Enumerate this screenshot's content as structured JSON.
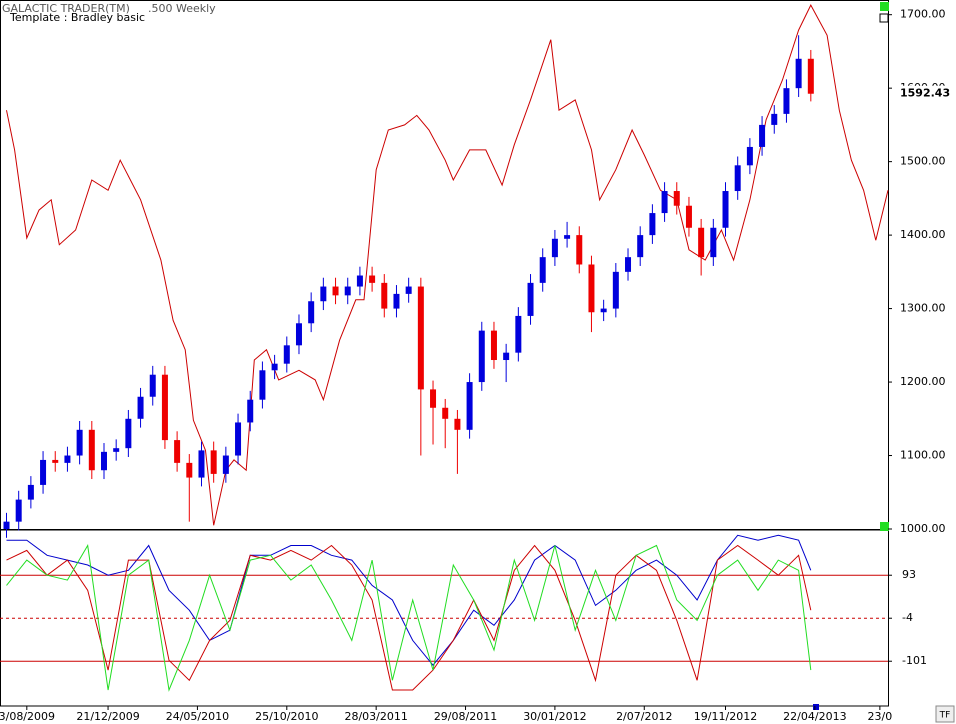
{
  "chart_data": [
    {
      "type": "candlestick",
      "title": "GALACTIC TRADER(TM)",
      "subtitle": ".500 Weekly",
      "template_label": "Template : Bradley basic",
      "up_color": "#0000dd",
      "down_color": "#ee0000",
      "x": [
        -5,
        -2,
        1,
        4,
        7,
        10,
        13,
        16,
        19,
        22,
        25,
        28,
        31,
        34,
        37,
        40,
        43,
        46,
        49,
        52,
        55,
        58,
        61,
        64,
        67,
        70,
        73,
        76,
        79,
        82,
        85,
        88,
        91,
        94,
        97,
        100,
        103,
        106,
        109,
        112,
        115,
        118,
        121,
        124,
        127,
        130,
        133,
        136,
        139,
        142,
        145,
        148,
        151,
        154,
        157,
        160,
        163,
        166,
        169,
        172,
        175,
        178,
        181,
        184,
        187,
        190,
        193
      ],
      "open": [
        1000,
        1010,
        1040,
        1060,
        1094,
        1090,
        1100,
        1135,
        1080,
        1105,
        1110,
        1150,
        1180,
        1210,
        1121,
        1090,
        1070,
        1107,
        1075,
        1100,
        1145,
        1176,
        1216,
        1225,
        1250,
        1280,
        1310,
        1330,
        1318,
        1330,
        1345,
        1335,
        1300,
        1320,
        1330,
        1190,
        1165,
        1150,
        1135,
        1200,
        1270,
        1230,
        1240,
        1290,
        1335,
        1370,
        1395,
        1400,
        1360,
        1295,
        1300,
        1350,
        1370,
        1400,
        1430,
        1460,
        1440,
        1410,
        1370,
        1410,
        1460,
        1495,
        1520,
        1550,
        1565,
        1600,
        1640
      ],
      "high": [
        1022,
        1052,
        1072,
        1106,
        1106,
        1112,
        1147,
        1147,
        1117,
        1122,
        1162,
        1192,
        1222,
        1222,
        1133,
        1102,
        1119,
        1119,
        1112,
        1157,
        1188,
        1228,
        1237,
        1262,
        1292,
        1322,
        1342,
        1342,
        1342,
        1357,
        1357,
        1347,
        1332,
        1342,
        1342,
        1202,
        1177,
        1162,
        1212,
        1282,
        1282,
        1252,
        1302,
        1347,
        1382,
        1407,
        1418,
        1412,
        1372,
        1312,
        1362,
        1382,
        1412,
        1442,
        1472,
        1472,
        1452,
        1422,
        1422,
        1472,
        1507,
        1532,
        1562,
        1577,
        1612,
        1672,
        1652
      ],
      "low": [
        988,
        998,
        1028,
        1048,
        1078,
        1078,
        1088,
        1068,
        1068,
        1093,
        1098,
        1138,
        1168,
        1109,
        1078,
        1010,
        1058,
        1063,
        1063,
        1088,
        1133,
        1164,
        1204,
        1213,
        1238,
        1268,
        1298,
        1306,
        1306,
        1318,
        1323,
        1288,
        1288,
        1308,
        1100,
        1115,
        1110,
        1075,
        1123,
        1188,
        1218,
        1200,
        1228,
        1278,
        1323,
        1358,
        1383,
        1348,
        1268,
        1283,
        1288,
        1338,
        1358,
        1388,
        1418,
        1428,
        1398,
        1345,
        1358,
        1398,
        1448,
        1483,
        1508,
        1538,
        1553,
        1588,
        1582
      ],
      "close": [
        1010,
        1040,
        1060,
        1094,
        1090,
        1100,
        1135,
        1080,
        1105,
        1110,
        1150,
        1180,
        1210,
        1121,
        1090,
        1070,
        1107,
        1075,
        1100,
        1145,
        1176,
        1216,
        1225,
        1250,
        1280,
        1310,
        1330,
        1318,
        1330,
        1345,
        1335,
        1300,
        1320,
        1330,
        1190,
        1165,
        1150,
        1135,
        1200,
        1270,
        1230,
        1240,
        1290,
        1335,
        1370,
        1395,
        1400,
        1360,
        1295,
        1300,
        1350,
        1370,
        1400,
        1430,
        1460,
        1440,
        1410,
        1370,
        1410,
        1460,
        1495,
        1520,
        1550,
        1565,
        1600,
        1640,
        1592.43
      ],
      "series": [
        {
          "color": "#cc0000",
          "x": [
            -5,
            -3,
            0,
            3,
            6,
            8,
            12,
            16,
            20,
            23,
            28,
            33,
            36,
            39,
            41,
            44,
            46,
            49,
            51,
            54,
            56,
            59,
            62,
            67,
            71,
            73,
            77,
            81,
            83,
            86,
            89,
            93,
            96,
            99,
            103,
            105,
            109,
            113,
            117,
            120,
            124,
            129,
            131,
            135,
            139,
            141,
            145,
            149,
            152,
            156,
            160,
            163,
            167,
            171,
            174,
            178,
            182,
            186,
            190,
            193,
            197,
            200,
            203,
            206,
            209,
            212
          ],
          "values": [
            1570,
            1516,
            1396,
            1434,
            1448,
            1387,
            1407,
            1475,
            1461,
            1502,
            1448,
            1366,
            1284,
            1244,
            1148,
            1107,
            1005,
            1080,
            1094,
            1080,
            1230,
            1244,
            1203,
            1216,
            1203,
            1176,
            1257,
            1312,
            1312,
            1489,
            1543,
            1550,
            1563,
            1543,
            1502,
            1475,
            1516,
            1516,
            1468,
            1523,
            1584,
            1666,
            1570,
            1584,
            1516,
            1448,
            1489,
            1543,
            1509,
            1461,
            1448,
            1380,
            1366,
            1407,
            1366,
            1448,
            1557,
            1611,
            1679,
            1713,
            1672,
            1570,
            1502,
            1461,
            1393,
            1461
          ]
        }
      ],
      "xlim": [
        -6.6,
        212
      ],
      "ylim": [
        1000,
        1720
      ],
      "yticks": [
        {
          "value": 1000,
          "label": "1000.00"
        },
        {
          "value": 1100,
          "label": "1100.00"
        },
        {
          "value": 1200,
          "label": "1200.00"
        },
        {
          "value": 1300,
          "label": "1300.00"
        },
        {
          "value": 1400,
          "label": "1400.00"
        },
        {
          "value": 1500,
          "label": "1500.00"
        },
        {
          "value": 1600,
          "label": "1600.00"
        },
        {
          "value": 1700,
          "label": "1700.00"
        }
      ]
    },
    {
      "type": "line",
      "x": [
        -5,
        0,
        5,
        10,
        15,
        20,
        25,
        30,
        35,
        40,
        45,
        50,
        55,
        60,
        65,
        70,
        75,
        80,
        85,
        90,
        95,
        100,
        105,
        110,
        115,
        120,
        125,
        130,
        135,
        140,
        145,
        150,
        155,
        160,
        165,
        170,
        175,
        180,
        185,
        190,
        193
      ],
      "series": [
        {
          "color": "#0000cc",
          "values": [
            172,
            172,
            138,
            127,
            116,
            93,
            104,
            160,
            59,
            14,
            -54,
            -31,
            138,
            138,
            160,
            160,
            138,
            127,
            70,
            37,
            -54,
            -110,
            -54,
            14,
            -20,
            37,
            127,
            160,
            127,
            25,
            59,
            104,
            127,
            93,
            37,
            127,
            183,
            172,
            183,
            172,
            104
          ]
        },
        {
          "color": "#cc0000",
          "values": [
            127,
            149,
            93,
            127,
            59,
            -121,
            127,
            127,
            -99,
            -144,
            -54,
            -9,
            138,
            127,
            149,
            127,
            160,
            116,
            37,
            -166,
            -166,
            -121,
            -54,
            37,
            -54,
            104,
            160,
            104,
            -9,
            -144,
            93,
            138,
            104,
            -9,
            -144,
            127,
            160,
            127,
            93,
            138,
            14
          ]
        },
        {
          "color": "#22dd22",
          "values": [
            70,
            127,
            93,
            82,
            160,
            -166,
            93,
            127,
            -166,
            -54,
            93,
            -31,
            127,
            138,
            82,
            116,
            37,
            -54,
            127,
            -144,
            37,
            -121,
            116,
            37,
            -76,
            127,
            -9,
            160,
            -31,
            104,
            -9,
            138,
            160,
            37,
            -9,
            93,
            127,
            59,
            127,
            104,
            -121
          ]
        }
      ],
      "xlim": [
        -6.6,
        212
      ],
      "ylim": [
        -202,
        195
      ],
      "yticks": [
        93,
        -4,
        -101
      ],
      "level_color": "#cc0000",
      "level_dash": [
        "solid",
        "dashed",
        "solid"
      ],
      "xticks": [
        {
          "value": 0,
          "label": "3/08/2009"
        },
        {
          "value": 20,
          "label": "21/12/2009"
        },
        {
          "value": 42,
          "label": "24/05/2010"
        },
        {
          "value": 64,
          "label": "25/10/2010"
        },
        {
          "value": 86,
          "label": "28/03/2011"
        },
        {
          "value": 108,
          "label": "29/08/2011"
        },
        {
          "value": 130,
          "label": "30/01/2012"
        },
        {
          "value": 152,
          "label": "2/07/2012"
        },
        {
          "value": 172,
          "label": "19/11/2012"
        },
        {
          "value": 194,
          "label": "22/04/2013"
        },
        {
          "value": 210,
          "label": "23/0"
        }
      ]
    }
  ]
}
